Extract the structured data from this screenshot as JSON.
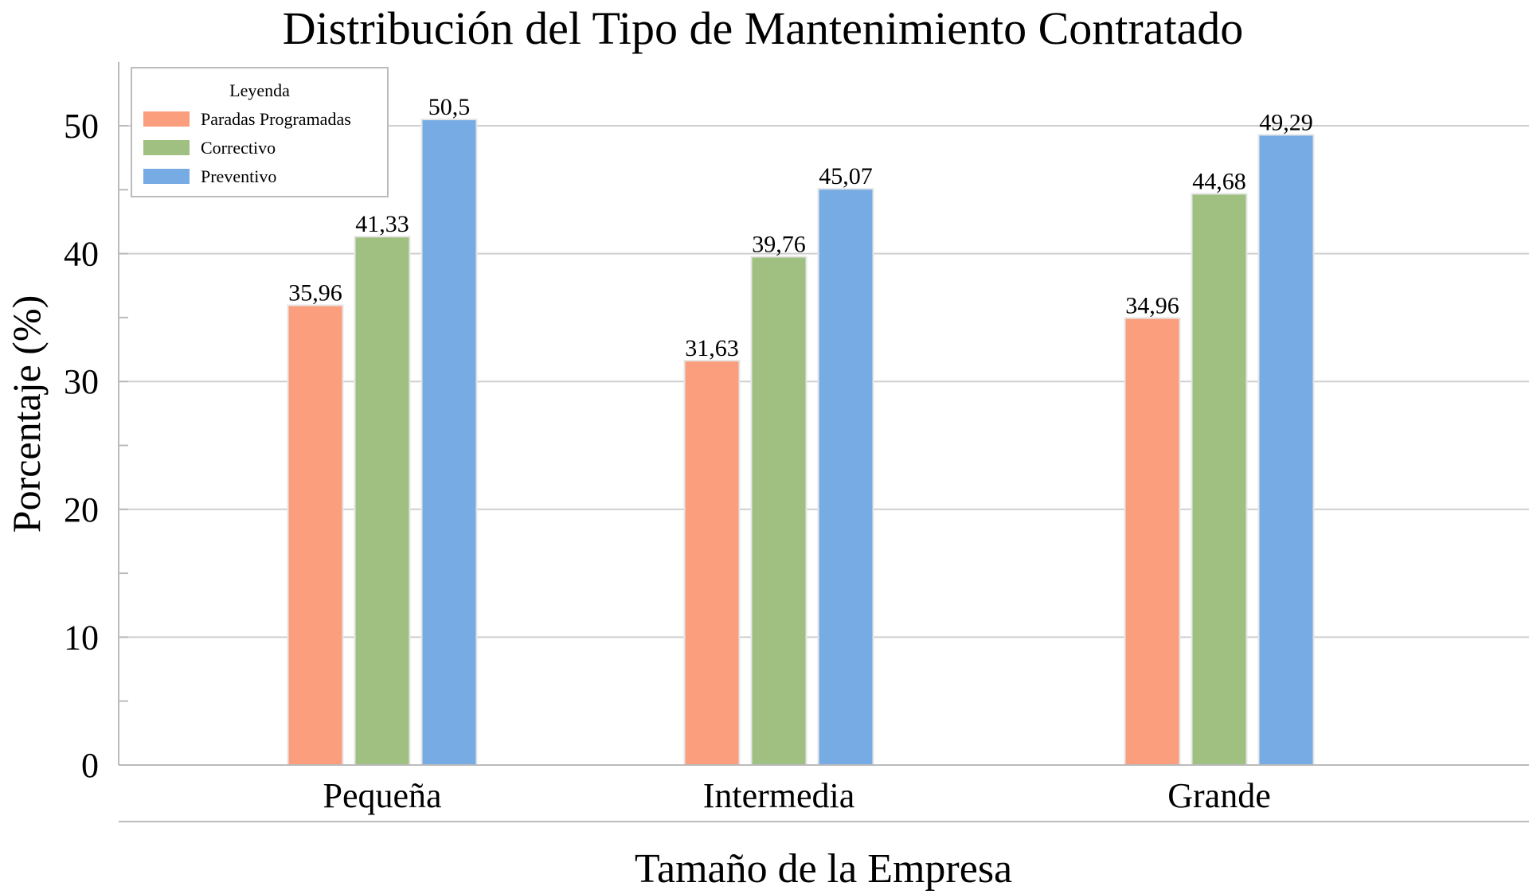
{
  "chart_data": {
    "type": "bar",
    "title": "Distribución del Tipo de Mantenimiento Contratado",
    "xlabel": "Tamaño de la Empresa",
    "ylabel": "Porcentaje (%)",
    "categories": [
      "Pequeña",
      "Intermedia",
      "Grande"
    ],
    "ylim": [
      0,
      55
    ],
    "yticks": [
      0,
      10,
      20,
      30,
      40,
      50
    ],
    "grid": true,
    "legend": {
      "title": "Leyenda",
      "placement": "top-left"
    },
    "series": [
      {
        "name": "Paradas Programadas",
        "color": "#fa9e7e",
        "values": [
          35.96,
          31.63,
          34.96
        ],
        "labels": [
          "35,96",
          "31,63",
          "34,96"
        ]
      },
      {
        "name": "Correctivo",
        "color": "#9fc080",
        "values": [
          41.33,
          39.76,
          44.68
        ],
        "labels": [
          "41,33",
          "39,76",
          "44,68"
        ]
      },
      {
        "name": "Preventivo",
        "color": "#77abe3",
        "values": [
          50.5,
          45.07,
          49.29
        ],
        "labels": [
          "50,5",
          "45,07",
          "49,29"
        ]
      }
    ]
  }
}
